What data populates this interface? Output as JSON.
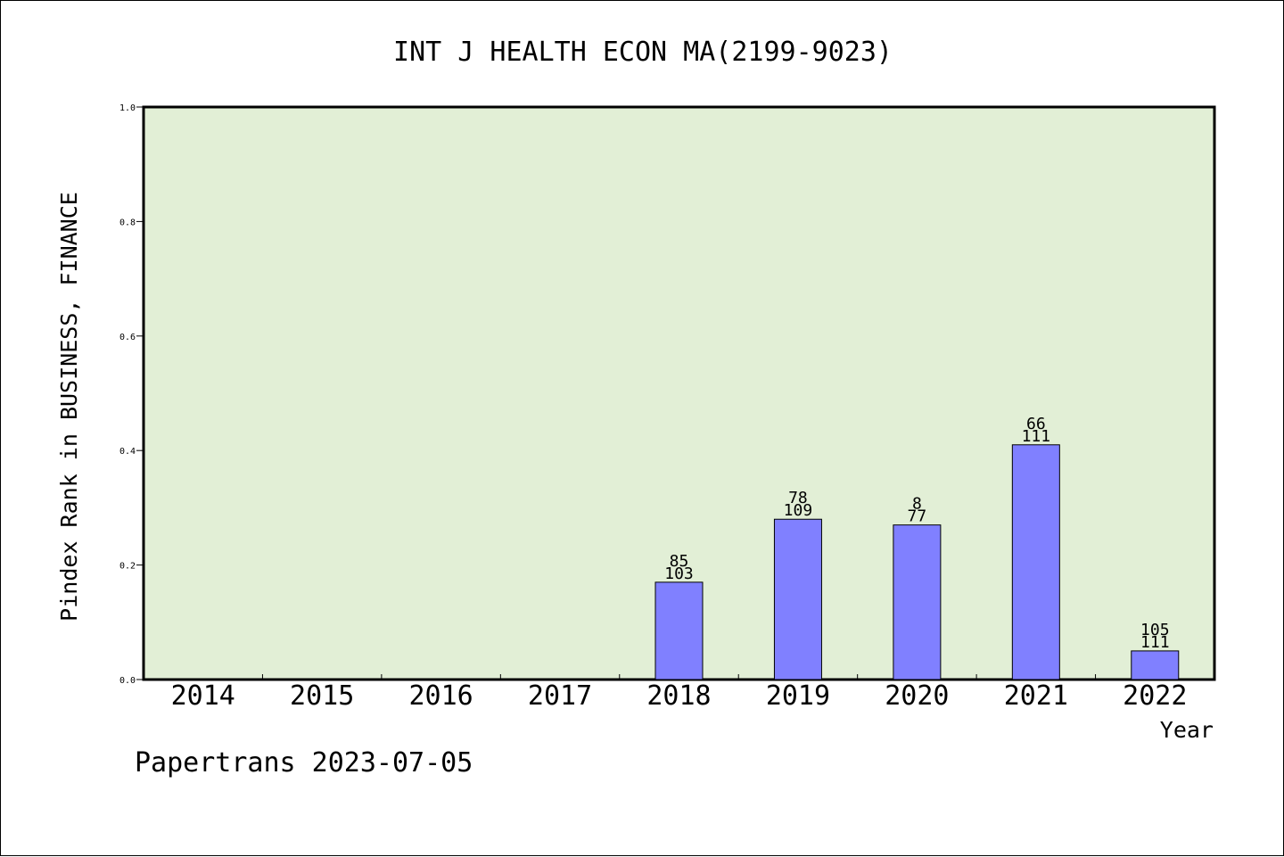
{
  "chart_data": {
    "type": "bar",
    "title": "INT J HEALTH ECON MA(2199-9023)",
    "xlabel": "Year",
    "ylabel": "Pindex Rank in BUSINESS, FINANCE",
    "footer": "Papertrans 2023-07-05",
    "categories": [
      "2014",
      "2015",
      "2016",
      "2017",
      "2018",
      "2019",
      "2020",
      "2021",
      "2022"
    ],
    "values": [
      null,
      null,
      null,
      null,
      0.17,
      0.28,
      0.27,
      0.41,
      0.05
    ],
    "rank_labels": [
      "",
      "",
      "",
      "",
      "85",
      "78",
      "8",
      "66",
      "105"
    ],
    "total_labels": [
      "",
      "",
      "",
      "",
      "103",
      "109",
      "77",
      "111",
      "111"
    ],
    "ylim": [
      0,
      1.0
    ],
    "yticks": [
      "0.0",
      "0.2",
      "0.4",
      "0.6",
      "0.8",
      "1.0"
    ],
    "grid": false,
    "colors": {
      "plot_background": "#e2efd6",
      "bar_fill": "#8080ff",
      "bar_stroke": "#000000",
      "axis": "#000000"
    }
  }
}
